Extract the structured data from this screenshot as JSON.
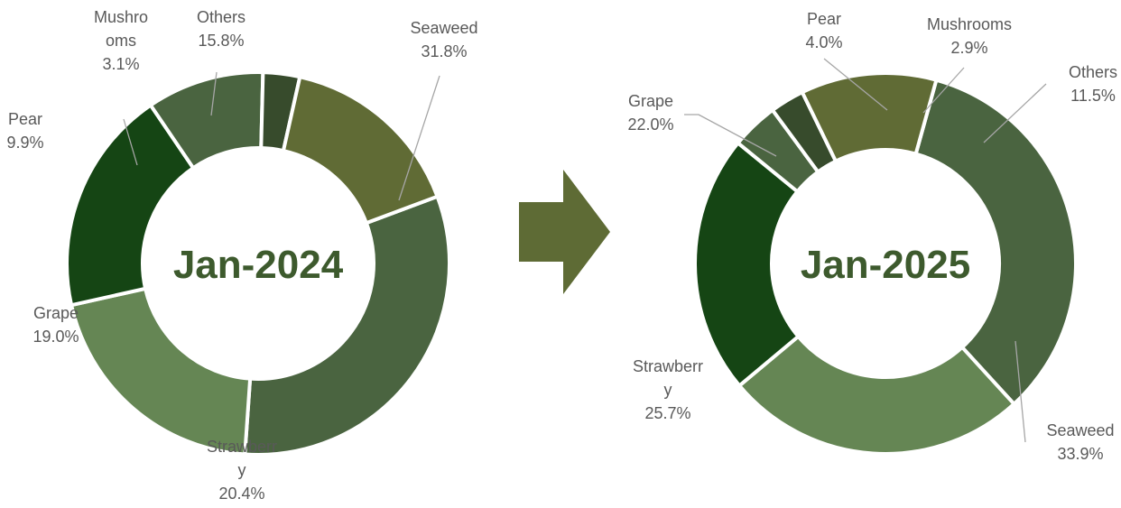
{
  "arrow_color": "#5e6b35",
  "chart_data": [
    {
      "type": "pie",
      "variant": "donut",
      "title": "",
      "center_label": "Jan-2024",
      "slices": [
        {
          "label_lines": [
            "Seaweed"
          ],
          "value_label": "31.8%",
          "value": 31.8,
          "color": "#4a6440"
        },
        {
          "label_lines": [
            "Strawberr",
            "y"
          ],
          "value_label": "20.4%",
          "value": 20.4,
          "color": "#658654"
        },
        {
          "label_lines": [
            "Grape"
          ],
          "value_label": "19.0%",
          "value": 19.0,
          "color": "#154514"
        },
        {
          "label_lines": [
            "Pear"
          ],
          "value_label": "9.9%",
          "value": 9.9,
          "color": "#4a6440"
        },
        {
          "label_lines": [
            "Mushro",
            "oms"
          ],
          "value_label": "3.1%",
          "value": 3.1,
          "color": "#374b2c"
        },
        {
          "label_lines": [
            "Others"
          ],
          "value_label": "15.8%",
          "value": 15.8,
          "color": "#606b35"
        }
      ]
    },
    {
      "type": "pie",
      "variant": "donut",
      "title": "",
      "center_label": "Jan-2025",
      "slices": [
        {
          "label_lines": [
            "Seaweed"
          ],
          "value_label": "33.9%",
          "value": 33.9,
          "color": "#4a6440"
        },
        {
          "label_lines": [
            "Strawberr",
            "y"
          ],
          "value_label": "25.7%",
          "value": 25.7,
          "color": "#658654"
        },
        {
          "label_lines": [
            "Grape"
          ],
          "value_label": "22.0%",
          "value": 22.0,
          "color": "#154514"
        },
        {
          "label_lines": [
            "Pear"
          ],
          "value_label": "4.0%",
          "value": 4.0,
          "color": "#4a6440"
        },
        {
          "label_lines": [
            "Mushrooms"
          ],
          "value_label": "2.9%",
          "value": 2.9,
          "color": "#374b2c"
        },
        {
          "label_lines": [
            "Others"
          ],
          "value_label": "11.5%",
          "value": 11.5,
          "color": "#606b35"
        }
      ]
    }
  ]
}
